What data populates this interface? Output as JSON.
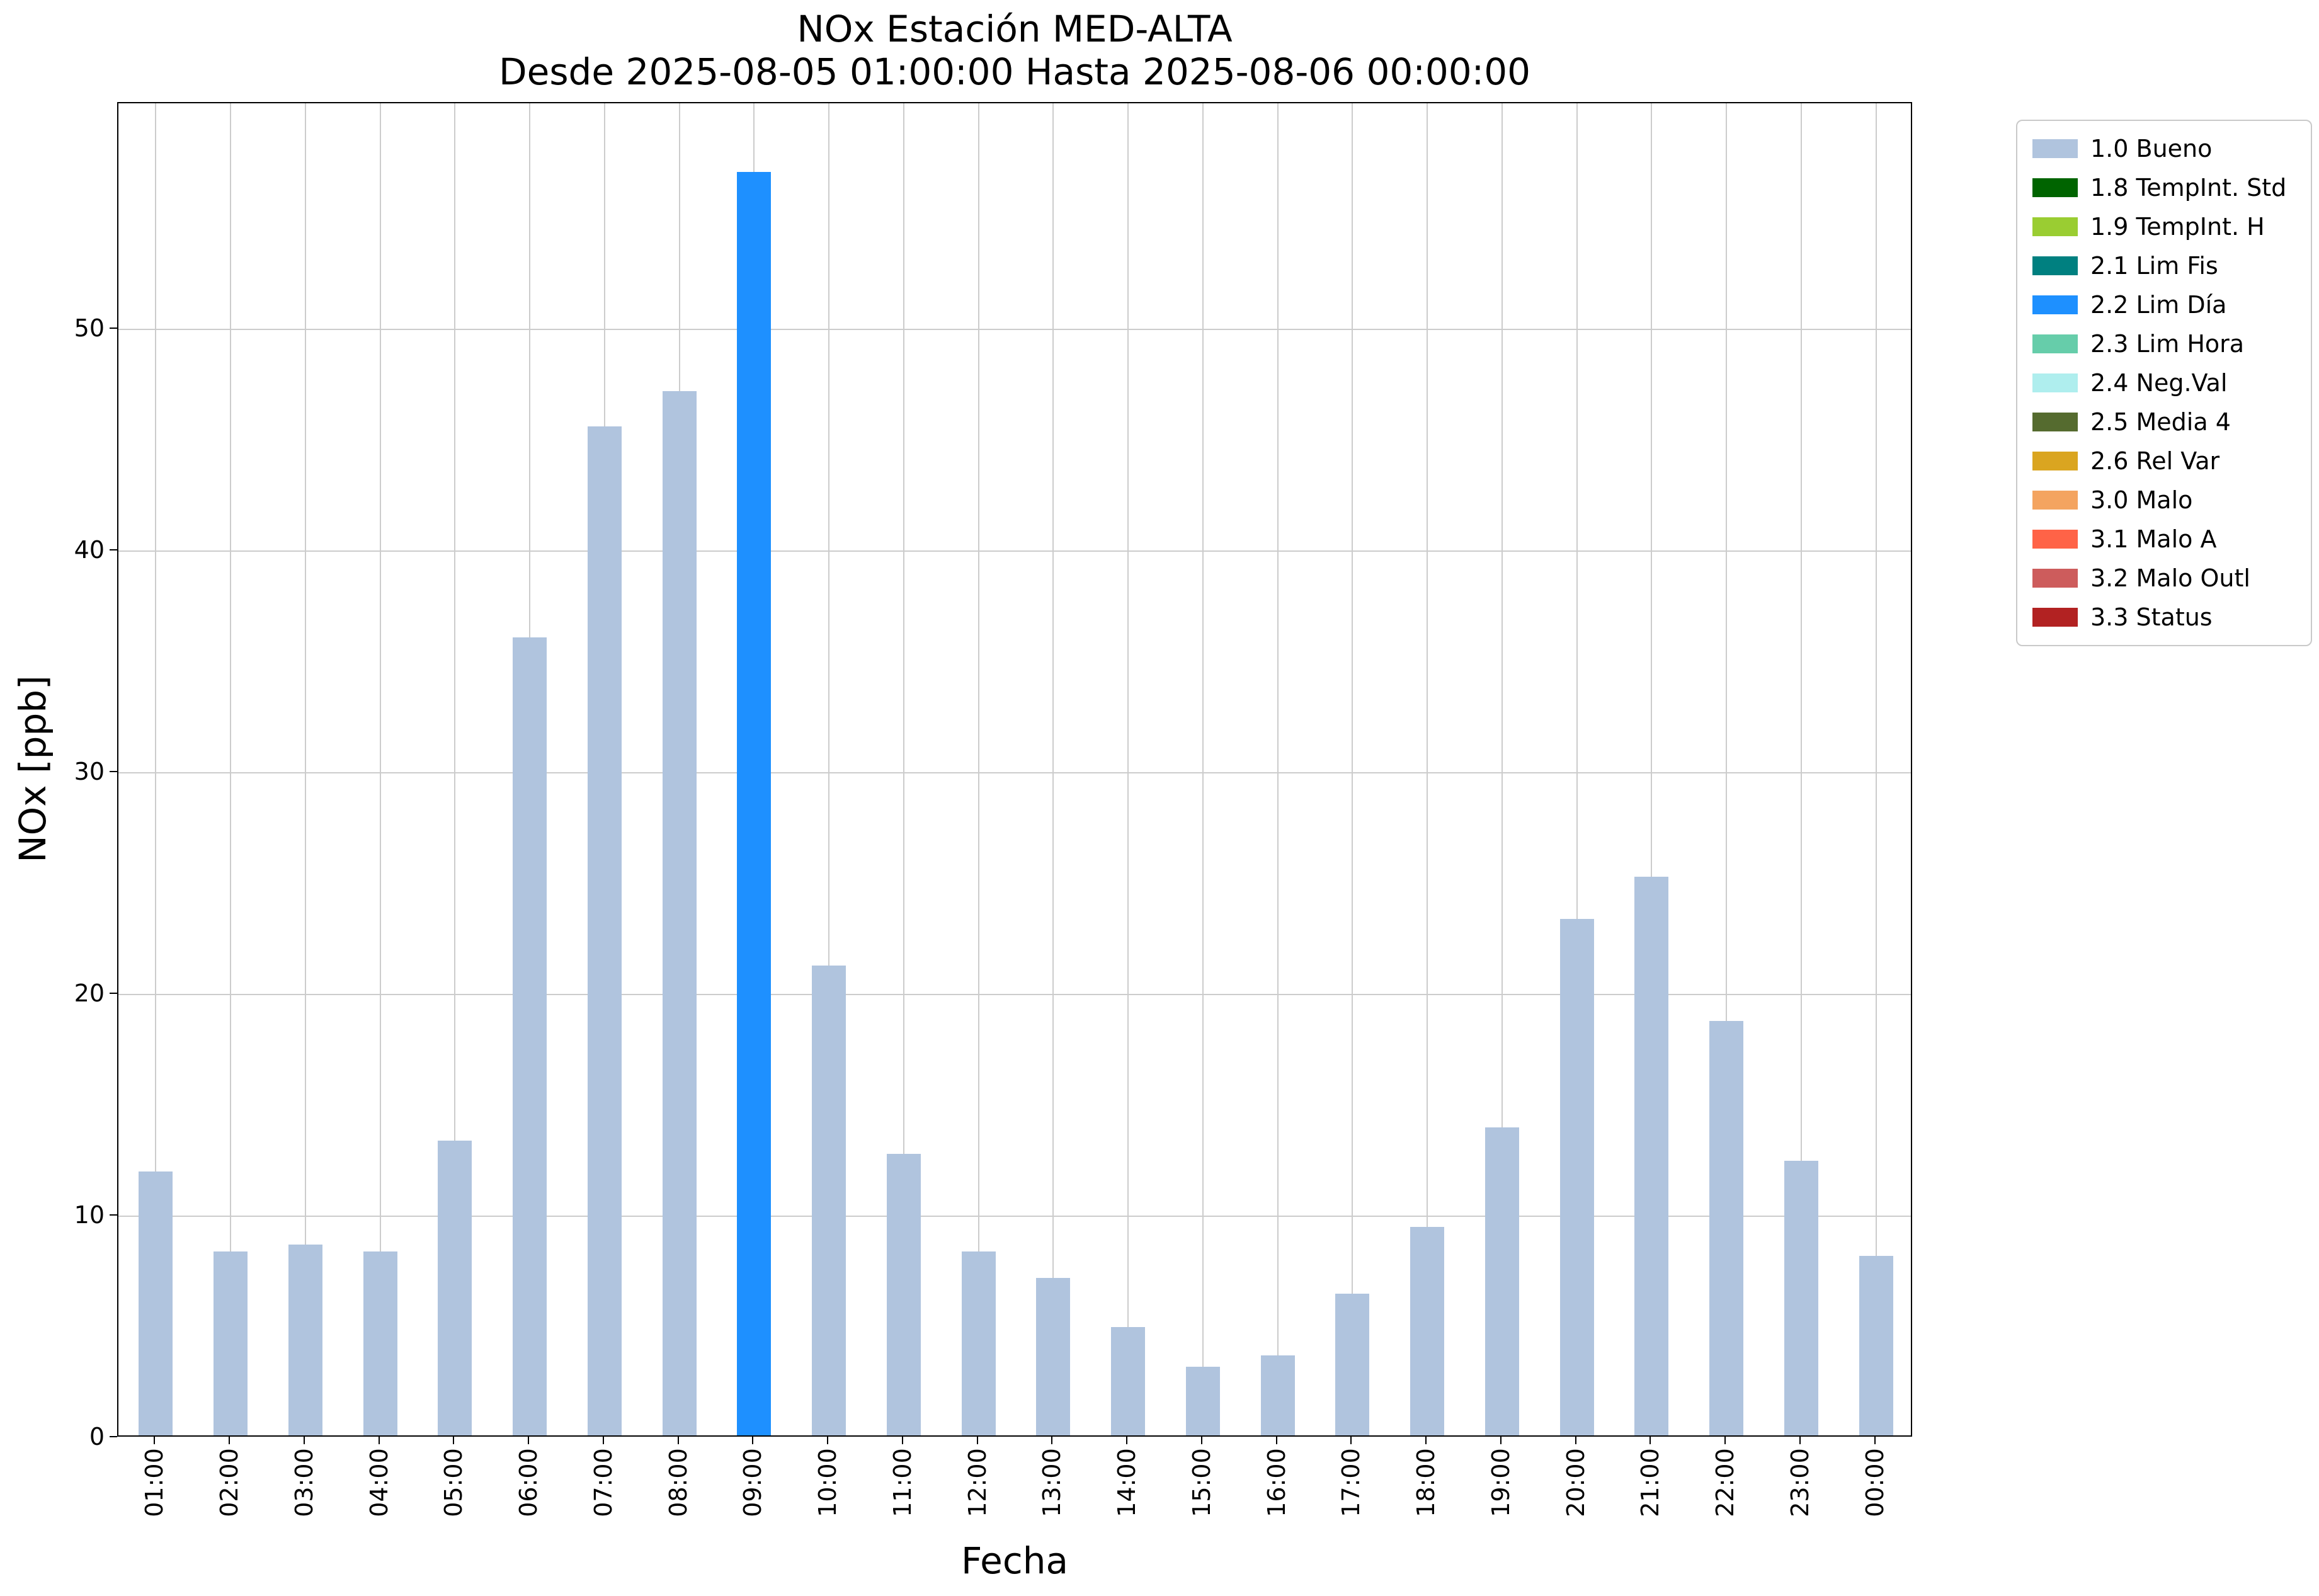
{
  "chart_data": {
    "type": "bar",
    "title": "NOx Estación MED-ALTA",
    "subtitle": "Desde 2025-08-05 01:00:00 Hasta 2025-08-06 00:00:00",
    "xlabel": "Fecha",
    "ylabel": "NOx [ppb]",
    "ylim": [
      0,
      60.2
    ],
    "yticks": [
      0,
      10,
      20,
      30,
      40,
      50
    ],
    "grid": true,
    "legend_position": "upper right outside plot",
    "categories": [
      "01:00",
      "02:00",
      "03:00",
      "04:00",
      "05:00",
      "06:00",
      "07:00",
      "08:00",
      "09:00",
      "10:00",
      "11:00",
      "12:00",
      "13:00",
      "14:00",
      "15:00",
      "16:00",
      "17:00",
      "18:00",
      "19:00",
      "20:00",
      "21:00",
      "22:00",
      "23:00",
      "00:00"
    ],
    "values": [
      11.9,
      8.3,
      8.6,
      8.3,
      13.3,
      36.0,
      45.5,
      47.1,
      57.0,
      21.2,
      12.7,
      8.3,
      7.1,
      4.9,
      3.1,
      3.6,
      6.4,
      9.4,
      13.9,
      23.3,
      25.2,
      18.7,
      12.4,
      8.1
    ],
    "bar_flags": [
      "1.0 Bueno",
      "1.0 Bueno",
      "1.0 Bueno",
      "1.0 Bueno",
      "1.0 Bueno",
      "1.0 Bueno",
      "1.0 Bueno",
      "1.0 Bueno",
      "2.2 Lim Día",
      "1.0 Bueno",
      "1.0 Bueno",
      "1.0 Bueno",
      "1.0 Bueno",
      "1.0 Bueno",
      "1.0 Bueno",
      "1.0 Bueno",
      "1.0 Bueno",
      "1.0 Bueno",
      "1.0 Bueno",
      "1.0 Bueno",
      "1.0 Bueno",
      "1.0 Bueno",
      "1.0 Bueno",
      "1.0 Bueno"
    ],
    "legend": [
      {
        "label": "1.0 Bueno",
        "color": "#b0c4de"
      },
      {
        "label": "1.8 TempInt. Std",
        "color": "#006400"
      },
      {
        "label": "1.9 TempInt. H",
        "color": "#9acd32"
      },
      {
        "label": "2.1 Lim Fis",
        "color": "#008080"
      },
      {
        "label": "2.2 Lim Día",
        "color": "#1e90ff"
      },
      {
        "label": "2.3 Lim Hora",
        "color": "#66cdaa"
      },
      {
        "label": "2.4 Neg.Val",
        "color": "#afeeee"
      },
      {
        "label": "2.5 Media 4",
        "color": "#556b2f"
      },
      {
        "label": "2.6 Rel Var",
        "color": "#daa520"
      },
      {
        "label": "3.0 Malo",
        "color": "#f4a460"
      },
      {
        "label": "3.1 Malo A",
        "color": "#ff6347"
      },
      {
        "label": "3.2 Malo Outl",
        "color": "#cd5c5c"
      },
      {
        "label": "3.3 Status",
        "color": "#b22222"
      }
    ]
  }
}
